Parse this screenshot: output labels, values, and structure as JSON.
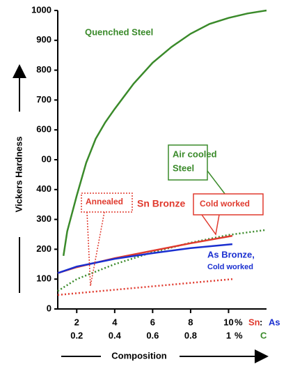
{
  "chart_data": {
    "type": "line",
    "xlabel": "Composition",
    "ylabel": "Vickers Hardness",
    "xlim": [
      1,
      12
    ],
    "xticks": [
      2,
      4,
      6,
      8,
      10
    ],
    "x2lim": [
      0.1,
      1.2
    ],
    "x2ticks": [
      0.2,
      0.4,
      0.6,
      0.8,
      1
    ],
    "ylim": [
      0,
      1000
    ],
    "yticks": [
      0,
      100,
      200,
      300,
      400,
      {
        "value": 500,
        "label": "00"
      },
      600,
      700,
      800,
      900,
      1000
    ],
    "series": [
      {
        "color": "#3a8a2a",
        "style": "solid",
        "x": [
          1.3,
          1.5,
          2,
          2.5,
          3,
          3.5,
          4,
          5,
          6,
          7,
          8,
          9,
          10,
          11,
          12
        ],
        "values": [
          178,
          260,
          380,
          490,
          570,
          625,
          670,
          755,
          825,
          878,
          922,
          955,
          975,
          990,
          1000
        ]
      },
      {
        "color": "#3a8a2a",
        "style": "dotted",
        "x": [
          1,
          2,
          4,
          6,
          8,
          10,
          12
        ],
        "values": [
          60,
          100,
          150,
          190,
          222,
          248,
          265
        ]
      },
      {
        "color": "#e03a2e",
        "style": "solid",
        "x": [
          1,
          2,
          4,
          6,
          8,
          10.2
        ],
        "values": [
          120,
          140,
          170,
          195,
          220,
          245
        ]
      },
      {
        "color": "#1a2fd0",
        "style": "solid",
        "x": [
          1,
          2,
          4,
          6,
          8,
          10.2
        ],
        "values": [
          120,
          142,
          168,
          187,
          204,
          217
        ]
      },
      {
        "color": "#e03a2e",
        "style": "dotted",
        "x": [
          1,
          10.2
        ],
        "values": [
          47,
          100
        ]
      }
    ],
    "annotations": [
      "Quenched Steel",
      "Air cooled",
      "Steel",
      "Annealed",
      "Sn Bronze",
      "Cold worked",
      "As Bronze,",
      "Cold worked"
    ],
    "unit_labels": [
      "%",
      "%"
    ],
    "element_labels": [
      "Sn",
      ":",
      "As",
      "C"
    ]
  }
}
